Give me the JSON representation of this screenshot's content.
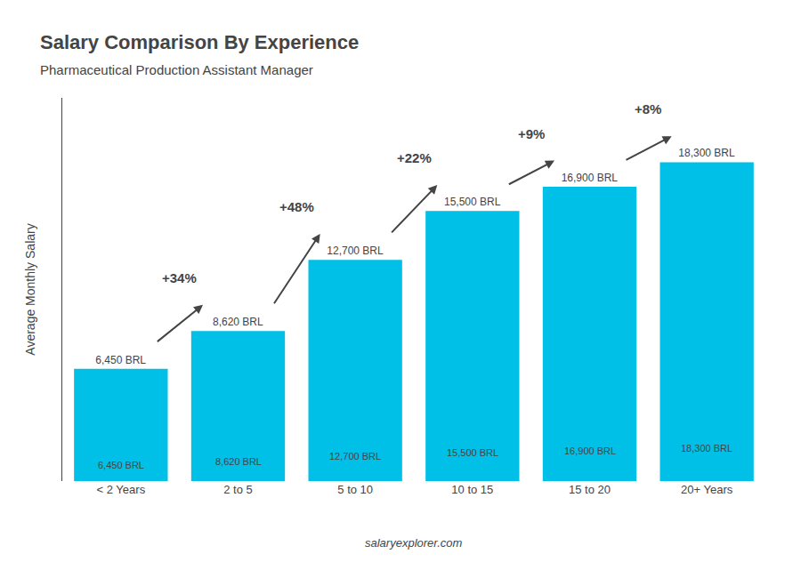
{
  "chart_data": {
    "type": "bar",
    "title": "Salary Comparison By Experience",
    "subtitle": "Pharmaceutical Production Assistant Manager",
    "categories": [
      "< 2 Years",
      "2 to 5",
      "5 to 10",
      "10 to 15",
      "15 to 20",
      "20+ Years"
    ],
    "values": [
      6450,
      8620,
      12700,
      15500,
      16900,
      18300
    ],
    "value_labels": [
      "6,450 BRL",
      "8,620 BRL",
      "12,700 BRL",
      "15,500 BRL",
      "16,900 BRL",
      "18,300 BRL"
    ],
    "data_labels": true,
    "color": "#00c0e8",
    "ylabel": "Average Monthly Salary",
    "ylim": [
      0,
      22000
    ],
    "tick_labels": "x",
    "grid": false,
    "annotations": [
      {
        "text": "+34%",
        "from": "< 2 Years",
        "to": "2 to 5"
      },
      {
        "text": "+48%",
        "from": "2 to 5",
        "to": "5 to 10"
      },
      {
        "text": "+22%",
        "from": "5 to 10",
        "to": "10 to 15"
      },
      {
        "text": "+9%",
        "from": "10 to 15",
        "to": "15 to 20"
      },
      {
        "text": "+8%",
        "from": "15 to 20",
        "to": "20+ Years"
      }
    ],
    "watermark": "salaryexplorer.com"
  }
}
